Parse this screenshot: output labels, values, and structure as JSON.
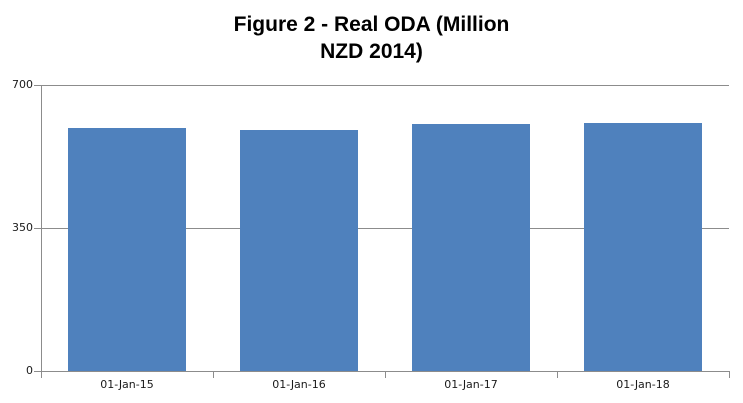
{
  "chart_data": {
    "type": "bar",
    "title": "Figure 2 - Real ODA (Million NZD 2014)",
    "title_lines": [
      "Figure 2 - Real ODA (Million",
      "NZD 2014)"
    ],
    "categories": [
      "01-Jan-15",
      "01-Jan-16",
      "01-Jan-17",
      "01-Jan-18"
    ],
    "values": [
      594,
      590,
      604,
      607
    ],
    "xlabel": "",
    "ylabel": "",
    "ylim": [
      0,
      700
    ],
    "yticks": [
      0,
      350,
      700
    ],
    "grid": true,
    "legend_position": "none",
    "bar_color": "#4F81BD",
    "axis_color": "#8C8C8C",
    "tick_text_color": "#1A1A1A",
    "title_color": "#000000",
    "background_color": "#FFFFFF"
  }
}
